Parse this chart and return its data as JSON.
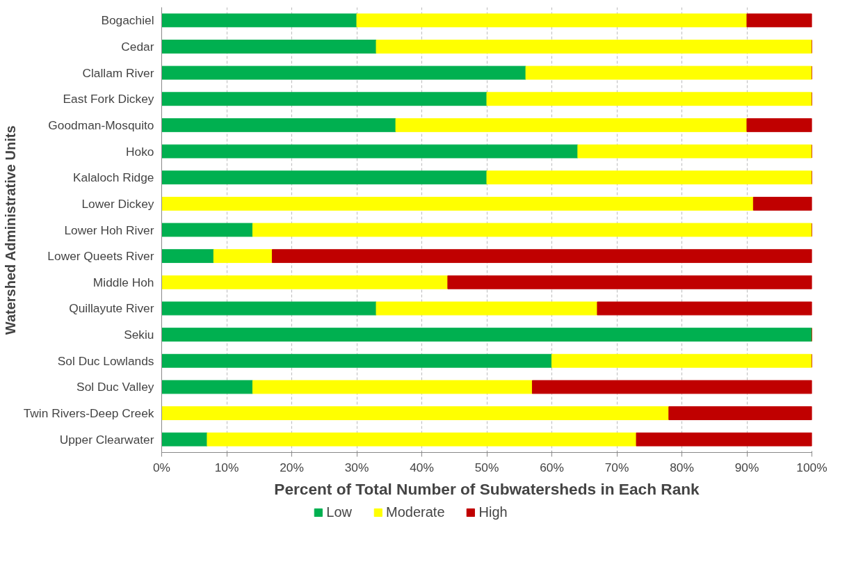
{
  "chart_data": {
    "type": "bar",
    "orientation": "horizontal",
    "stacked": true,
    "xlabel": "Percent of Total Number of Subwatersheds in Each Rank",
    "ylabel": "Watershed Administrative Units",
    "categories": [
      "Bogachiel",
      "Cedar",
      "Clallam River",
      "East Fork Dickey",
      "Goodman-Mosquito",
      "Hoko",
      "Kalaloch Ridge",
      "Lower Dickey",
      "Lower Hoh River",
      "Lower Queets River",
      "Middle Hoh",
      "Quillayute River",
      "Sekiu",
      "Sol Duc Lowlands",
      "Sol Duc Valley",
      "Twin Rivers-Deep Creek",
      "Upper Clearwater"
    ],
    "series": [
      {
        "name": "Low",
        "color": "#00b050",
        "values": [
          30,
          33,
          56,
          50,
          36,
          64,
          50,
          0,
          14,
          8,
          0,
          33,
          100,
          60,
          14,
          0,
          7
        ]
      },
      {
        "name": "Moderate",
        "color": "#ffff00",
        "values": [
          60,
          67,
          44,
          50,
          54,
          36,
          50,
          91,
          86,
          9,
          44,
          34,
          0,
          40,
          43,
          78,
          66
        ]
      },
      {
        "name": "High",
        "color": "#c00000",
        "values": [
          10,
          0,
          0,
          0,
          10,
          0,
          0,
          9,
          0,
          83,
          56,
          33,
          0,
          0,
          43,
          22,
          27
        ]
      }
    ],
    "xlim": [
      0,
      100
    ],
    "xticks": [
      {
        "value": 0,
        "label": "0%"
      },
      {
        "value": 10,
        "label": "10%"
      },
      {
        "value": 20,
        "label": "20%"
      },
      {
        "value": 30,
        "label": "30%"
      },
      {
        "value": 40,
        "label": "40%"
      },
      {
        "value": 50,
        "label": "50%"
      },
      {
        "value": 60,
        "label": "60%"
      },
      {
        "value": 70,
        "label": "70%"
      },
      {
        "value": 80,
        "label": "80%"
      },
      {
        "value": 90,
        "label": "90%"
      },
      {
        "value": 100,
        "label": "100%"
      }
    ],
    "grid": "x",
    "legend": "bottom"
  }
}
